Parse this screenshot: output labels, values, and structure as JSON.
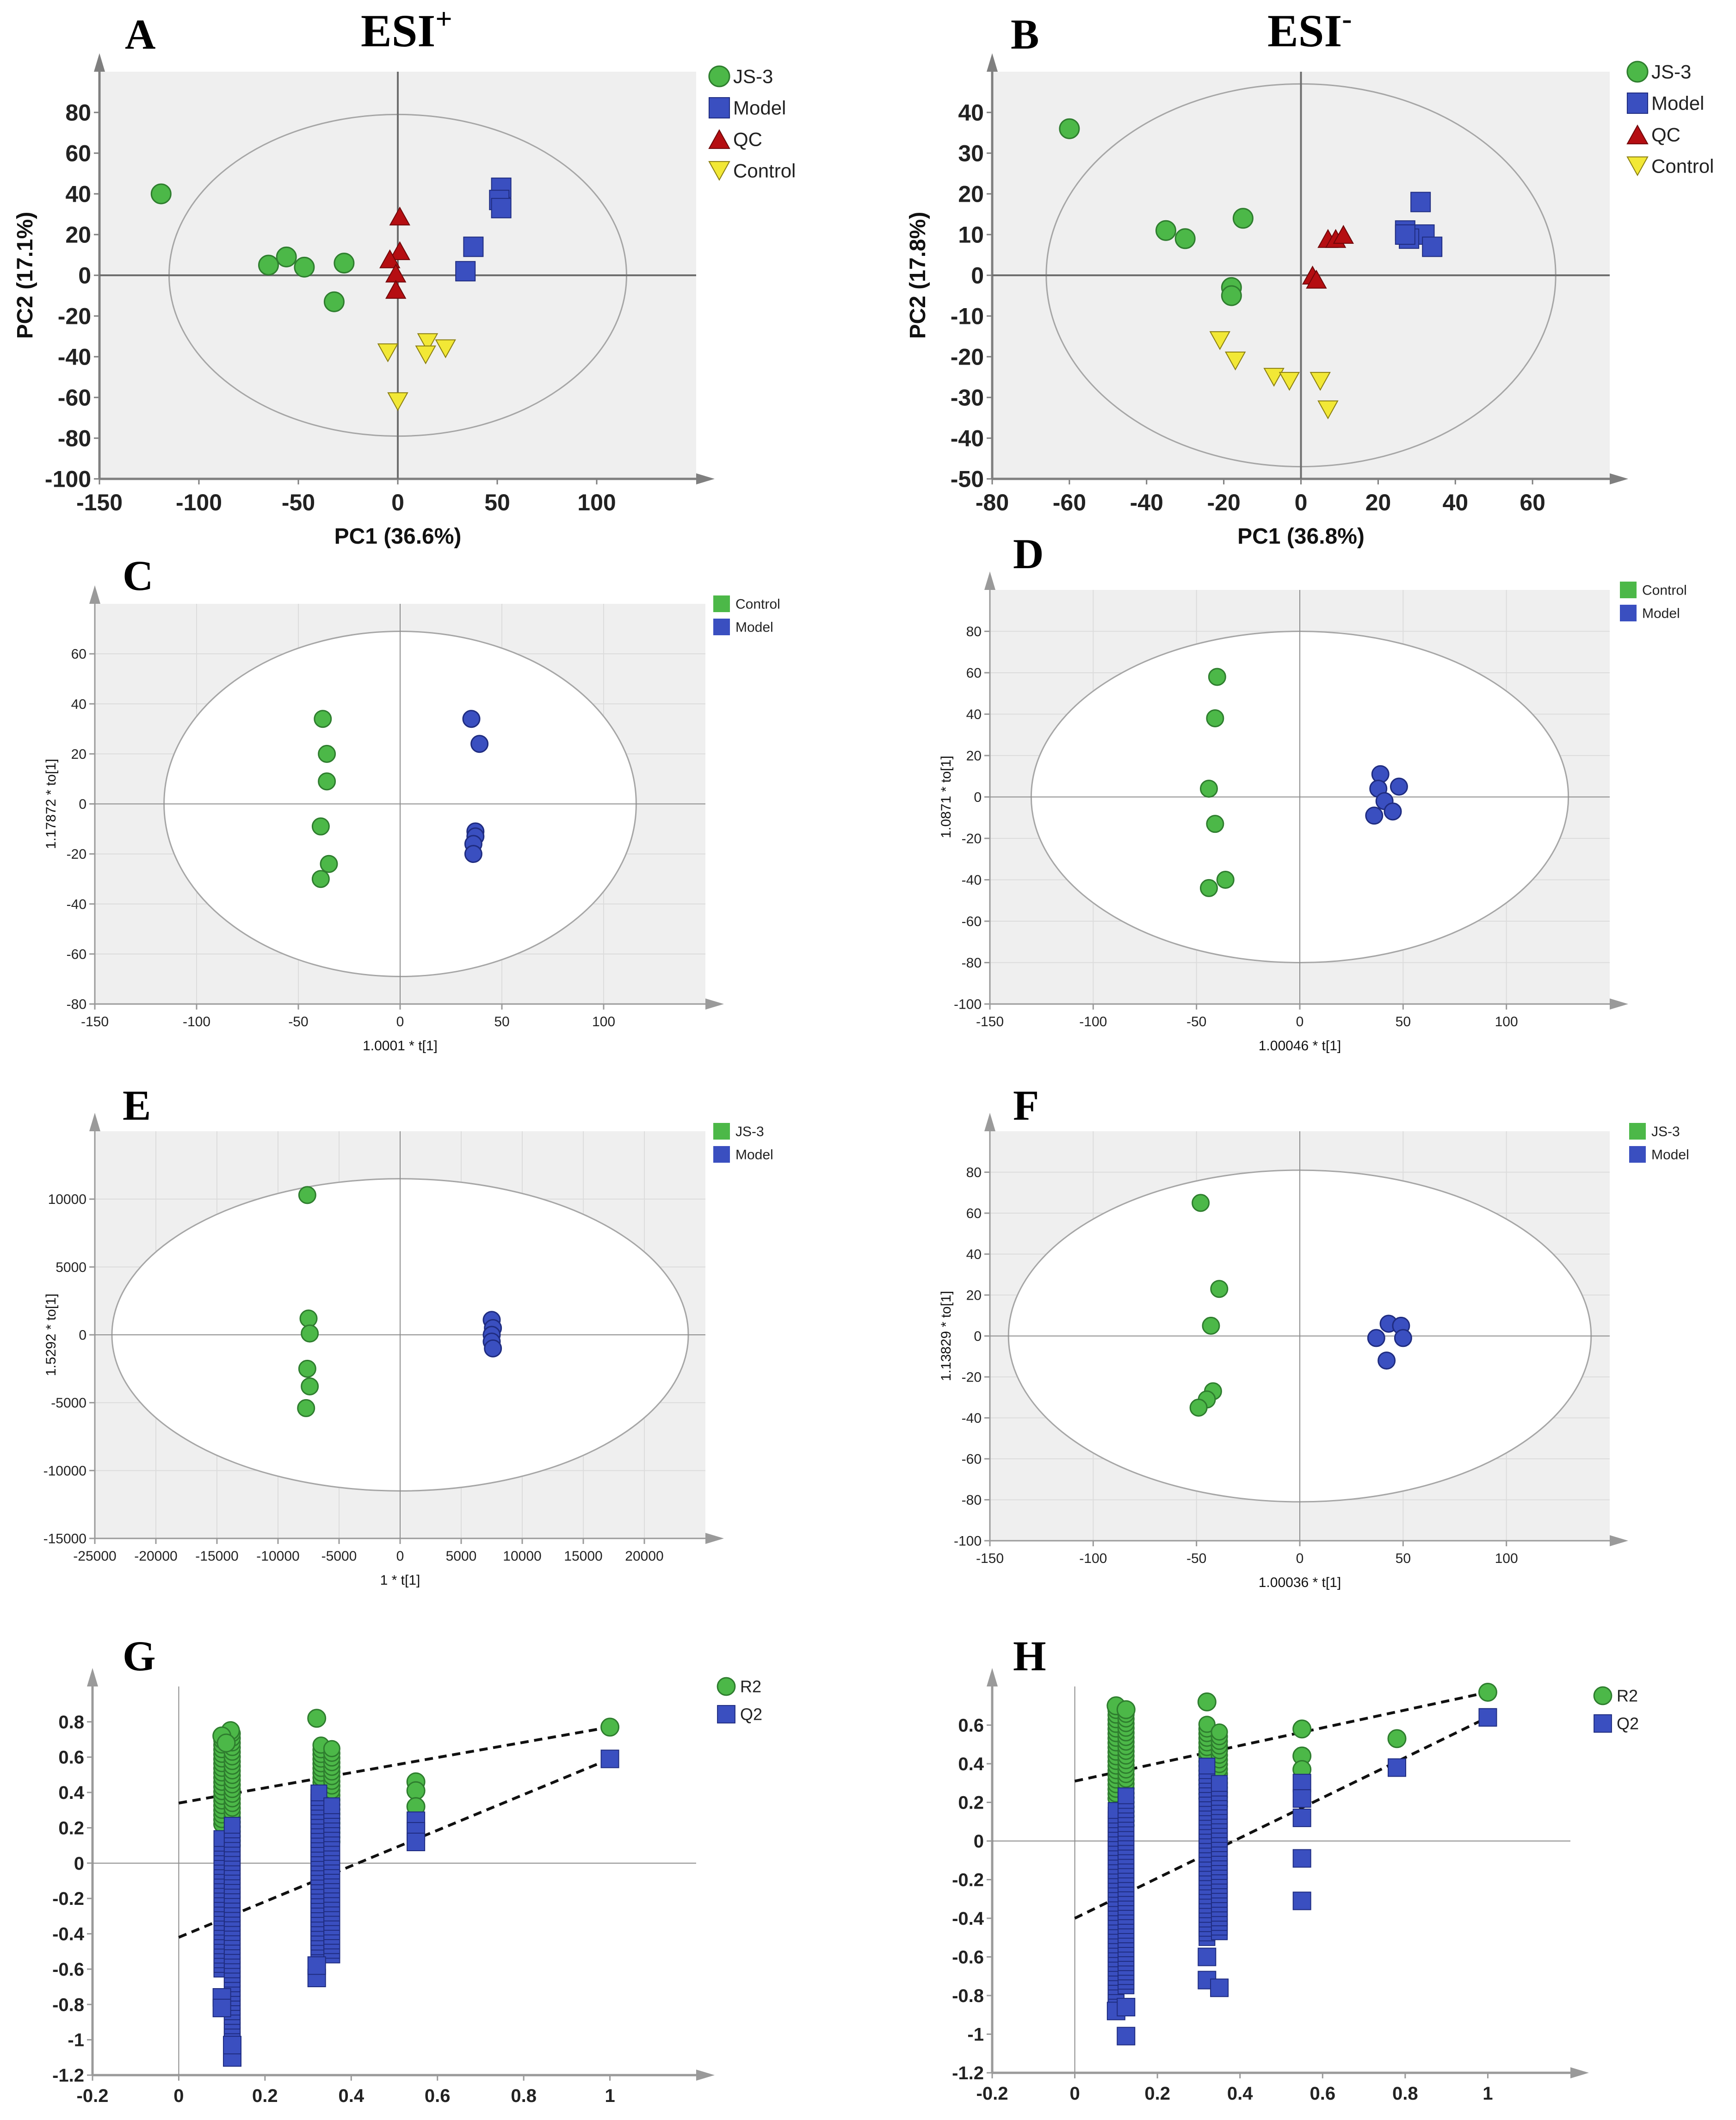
{
  "colors": {
    "js3": "#4CB848",
    "model": "#3A4FC0",
    "qc": "#B50E12",
    "control": "#F2E836",
    "plot_bg": "#EFEFEF",
    "grid": "#DCDCDC",
    "axis": "#9A9A9A",
    "ellipse": "#A6A6A6"
  },
  "figure": {
    "esi_pos_label": "ESI",
    "esi_pos_sup": "+",
    "esi_neg_label": "ESI",
    "esi_neg_sup": "-"
  },
  "chart_data": [
    {
      "id": "A",
      "type": "scatter",
      "panel_label": "A",
      "xlabel": "PC1 (36.6%)",
      "ylabel": "PC2 (17.1%)",
      "xlim": [
        -150,
        150
      ],
      "ylim": [
        -100,
        100
      ],
      "xticks": [
        -150,
        -100,
        -50,
        0,
        50,
        100
      ],
      "yticks": [
        -100,
        -80,
        -60,
        -40,
        -20,
        0,
        20,
        40,
        60,
        80
      ],
      "ellipse": {
        "rx": 115,
        "ry": 79
      },
      "series": [
        {
          "name": "JS-3",
          "marker": "circle",
          "color": "#4CB848",
          "points": [
            [
              -119,
              40
            ],
            [
              -65,
              5
            ],
            [
              -56,
              9
            ],
            [
              -47,
              4
            ],
            [
              -27,
              6
            ],
            [
              -32,
              -13
            ]
          ]
        },
        {
          "name": "Model",
          "marker": "square",
          "color": "#3A4FC0",
          "points": [
            [
              52,
              43
            ],
            [
              51,
              37
            ],
            [
              52,
              33
            ],
            [
              38,
              14
            ],
            [
              34,
              2
            ]
          ]
        },
        {
          "name": "QC",
          "marker": "triangle-up",
          "color": "#B50E12",
          "points": [
            [
              1,
              29
            ],
            [
              1,
              12
            ],
            [
              -4,
              8
            ],
            [
              -1,
              1
            ],
            [
              -1,
              -7
            ]
          ]
        },
        {
          "name": "Control",
          "marker": "triangle-down",
          "color": "#F2E836",
          "points": [
            [
              -5,
              -38
            ],
            [
              15,
              -33
            ],
            [
              14,
              -39
            ],
            [
              24,
              -36
            ],
            [
              0,
              -62
            ]
          ]
        }
      ]
    },
    {
      "id": "B",
      "type": "scatter",
      "panel_label": "B",
      "xlabel": "PC1 (36.8%)",
      "ylabel": "PC2 (17.8%)",
      "xlim": [
        -80,
        80
      ],
      "ylim": [
        -50,
        50
      ],
      "xticks": [
        -80,
        -60,
        -40,
        -20,
        0,
        20,
        40,
        60
      ],
      "yticks": [
        -50,
        -40,
        -30,
        -20,
        -10,
        0,
        10,
        20,
        30,
        40
      ],
      "ellipse": {
        "rx": 66,
        "ry": 47
      },
      "series": [
        {
          "name": "JS-3",
          "marker": "circle",
          "color": "#4CB848",
          "points": [
            [
              -60,
              36
            ],
            [
              -35,
              11
            ],
            [
              -30,
              9
            ],
            [
              -15,
              14
            ],
            [
              -18,
              -3
            ],
            [
              -18,
              -5
            ]
          ]
        },
        {
          "name": "Model",
          "marker": "square",
          "color": "#3A4FC0",
          "points": [
            [
              31,
              18
            ],
            [
              27,
              11
            ],
            [
              32,
              10
            ],
            [
              28,
              9
            ],
            [
              34,
              7
            ],
            [
              27,
              10
            ]
          ]
        },
        {
          "name": "QC",
          "marker": "triangle-up",
          "color": "#B50E12",
          "points": [
            [
              7,
              9
            ],
            [
              9,
              9
            ],
            [
              11,
              10
            ],
            [
              3,
              0
            ],
            [
              4,
              -1
            ]
          ]
        },
        {
          "name": "Control",
          "marker": "triangle-down",
          "color": "#F2E836",
          "points": [
            [
              -21,
              -16
            ],
            [
              -17,
              -21
            ],
            [
              -7,
              -25
            ],
            [
              -3,
              -26
            ],
            [
              5,
              -26
            ],
            [
              7,
              -33
            ]
          ]
        }
      ]
    },
    {
      "id": "C",
      "type": "scatter",
      "panel_label": "C",
      "xlabel": "1.0001 * t[1]",
      "ylabel": "1.17872 * to[1]",
      "xlim": [
        -150,
        150
      ],
      "ylim": [
        -80,
        80
      ],
      "xticks": [
        -150,
        -100,
        -50,
        0,
        50,
        100
      ],
      "yticks": [
        -80,
        -60,
        -40,
        -20,
        0,
        20,
        40,
        60
      ],
      "ellipse": {
        "rx": 116,
        "ry": 69
      },
      "series": [
        {
          "name": "Control",
          "marker": "circle",
          "color": "#4CB848",
          "points": [
            [
              -38,
              34
            ],
            [
              -36,
              20
            ],
            [
              -36,
              9
            ],
            [
              -39,
              -9
            ],
            [
              -35,
              -24
            ],
            [
              -39,
              -30
            ]
          ]
        },
        {
          "name": "Model",
          "marker": "circle",
          "color": "#3A4FC0",
          "points": [
            [
              35,
              34
            ],
            [
              39,
              24
            ],
            [
              37,
              -11
            ],
            [
              37,
              -13
            ],
            [
              36,
              -16
            ],
            [
              36,
              -20
            ]
          ]
        }
      ]
    },
    {
      "id": "D",
      "type": "scatter",
      "panel_label": "D",
      "xlabel": "1.00046 * t[1]",
      "ylabel": "1.0871 * to[1]",
      "xlim": [
        -150,
        150
      ],
      "ylim": [
        -100,
        100
      ],
      "xticks": [
        -150,
        -100,
        -50,
        0,
        50,
        100
      ],
      "yticks": [
        -100,
        -80,
        -60,
        -40,
        -20,
        0,
        20,
        40,
        60,
        80
      ],
      "ellipse": {
        "rx": 130,
        "ry": 80
      },
      "series": [
        {
          "name": "Control",
          "marker": "circle",
          "color": "#4CB848",
          "points": [
            [
              -40,
              58
            ],
            [
              -41,
              38
            ],
            [
              -44,
              4
            ],
            [
              -41,
              -13
            ],
            [
              -36,
              -40
            ],
            [
              -44,
              -44
            ]
          ]
        },
        {
          "name": "Model",
          "marker": "circle",
          "color": "#3A4FC0",
          "points": [
            [
              39,
              11
            ],
            [
              38,
              4
            ],
            [
              41,
              -2
            ],
            [
              48,
              5
            ],
            [
              45,
              -7
            ],
            [
              36,
              -9
            ]
          ]
        }
      ]
    },
    {
      "id": "E",
      "type": "scatter",
      "panel_label": "E",
      "xlabel": "1 * t[1]",
      "ylabel": "1.5292 * to[1]",
      "xlim": [
        -25000,
        25000
      ],
      "ylim": [
        -15000,
        15000
      ],
      "xticks": [
        -25000,
        -20000,
        -15000,
        -10000,
        -5000,
        0,
        5000,
        10000,
        15000,
        20000
      ],
      "yticks": [
        -15000,
        -10000,
        -5000,
        0,
        5000,
        10000
      ],
      "ellipse": {
        "rx": 23600,
        "ry": 11500
      },
      "series": [
        {
          "name": "JS-3",
          "marker": "circle",
          "color": "#4CB848",
          "points": [
            [
              -7600,
              10300
            ],
            [
              -7500,
              1200
            ],
            [
              -7400,
              100
            ],
            [
              -7600,
              -2500
            ],
            [
              -7400,
              -3800
            ],
            [
              -7700,
              -5400
            ]
          ]
        },
        {
          "name": "Model",
          "marker": "circle",
          "color": "#3A4FC0",
          "points": [
            [
              7500,
              1100
            ],
            [
              7600,
              500
            ],
            [
              7500,
              0
            ],
            [
              7500,
              -500
            ],
            [
              7600,
              -1000
            ]
          ]
        }
      ]
    },
    {
      "id": "F",
      "type": "scatter",
      "panel_label": "F",
      "xlabel": "1.00036 * t[1]",
      "ylabel": "1.13829 * to[1]",
      "xlim": [
        -150,
        150
      ],
      "ylim": [
        -100,
        100
      ],
      "xticks": [
        -150,
        -100,
        -50,
        0,
        50,
        100
      ],
      "yticks": [
        -100,
        -80,
        -60,
        -40,
        -20,
        0,
        20,
        40,
        60,
        80
      ],
      "ellipse": {
        "rx": 141,
        "ry": 81
      },
      "series": [
        {
          "name": "JS-3",
          "marker": "circle",
          "color": "#4CB848",
          "points": [
            [
              -48,
              65
            ],
            [
              -39,
              23
            ],
            [
              -43,
              5
            ],
            [
              -42,
              -27
            ],
            [
              -45,
              -31
            ],
            [
              -49,
              -35
            ]
          ]
        },
        {
          "name": "Model",
          "marker": "circle",
          "color": "#3A4FC0",
          "points": [
            [
              43,
              6
            ],
            [
              49,
              5
            ],
            [
              37,
              -1
            ],
            [
              50,
              -1
            ],
            [
              42,
              -12
            ]
          ]
        }
      ]
    },
    {
      "id": "G",
      "type": "scatter",
      "panel_label": "G",
      "xlabel": "",
      "ylabel": "",
      "xlim": [
        -0.2,
        1.2
      ],
      "ylim": [
        -1.2,
        1.0
      ],
      "xticks": [
        -0.2,
        0,
        0.2,
        0.4,
        0.6,
        0.8,
        1
      ],
      "yticks": [
        -1.2,
        -1,
        -0.8,
        -0.6,
        -0.4,
        -0.2,
        0,
        0.2,
        0.4,
        0.6,
        0.8
      ],
      "regression": [
        {
          "name": "R2",
          "x": [
            0,
            1
          ],
          "y": [
            0.34,
            0.77
          ]
        },
        {
          "name": "Q2",
          "x": [
            0,
            1
          ],
          "y": [
            -0.42,
            0.59
          ]
        }
      ],
      "series": [
        {
          "name": "R2",
          "marker": "circle",
          "color": "#4CB848",
          "points": [
            [
              1,
              0.77
            ],
            [
              0.32,
              0.82
            ],
            [
              0.55,
              0.46
            ],
            [
              0.55,
              0.41
            ],
            [
              0.55,
              0.32
            ],
            [
              0.12,
              0.75
            ],
            [
              0.1,
              0.72
            ],
            [
              0.11,
              0.68
            ]
          ],
          "columns": [
            {
              "x": 0.1,
              "min": 0.22,
              "max": 0.72
            },
            {
              "x": 0.124,
              "min": 0.1,
              "max": 0.75
            },
            {
              "x": 0.33,
              "min": 0.14,
              "max": 0.67
            },
            {
              "x": 0.355,
              "min": 0.12,
              "max": 0.67
            }
          ]
        },
        {
          "name": "Q2",
          "marker": "square",
          "color": "#3A4FC0",
          "points": [
            [
              1,
              0.59
            ],
            [
              0.55,
              0.24
            ],
            [
              0.55,
              0.18
            ],
            [
              0.55,
              0.12
            ],
            [
              0.1,
              -0.76
            ],
            [
              0.1,
              -0.82
            ],
            [
              0.124,
              -1.1
            ],
            [
              0.124,
              -1.03
            ],
            [
              0.32,
              -0.65
            ],
            [
              0.32,
              -0.58
            ]
          ],
          "columns": [
            {
              "x": 0.1,
              "min": -0.6,
              "max": 0.15
            },
            {
              "x": 0.124,
              "min": -1.0,
              "max": 0.23
            },
            {
              "x": 0.325,
              "min": -0.5,
              "max": 0.4
            },
            {
              "x": 0.355,
              "min": -0.52,
              "max": 0.34
            }
          ]
        }
      ]
    },
    {
      "id": "H",
      "type": "scatter",
      "panel_label": "H",
      "xlabel": "",
      "ylabel": "",
      "xlim": [
        -0.2,
        1.2
      ],
      "ylim": [
        -1.2,
        0.8
      ],
      "xticks": [
        -0.2,
        0,
        0.2,
        0.4,
        0.6,
        0.8,
        1
      ],
      "yticks": [
        -1.2,
        -1,
        -0.8,
        -0.6,
        -0.4,
        -0.2,
        0,
        0.2,
        0.4,
        0.6
      ],
      "regression": [
        {
          "name": "R2",
          "x": [
            0,
            1
          ],
          "y": [
            0.31,
            0.77
          ]
        },
        {
          "name": "Q2",
          "x": [
            0,
            1
          ],
          "y": [
            -0.4,
            0.64
          ]
        }
      ],
      "series": [
        {
          "name": "R2",
          "marker": "circle",
          "color": "#4CB848",
          "points": [
            [
              1,
              0.77
            ],
            [
              0.78,
              0.53
            ],
            [
              0.32,
              0.72
            ],
            [
              0.55,
              0.58
            ],
            [
              0.55,
              0.44
            ],
            [
              0.55,
              0.37
            ],
            [
              0.1,
              0.7
            ],
            [
              0.124,
              0.68
            ]
          ],
          "columns": [
            {
              "x": 0.1,
              "min": 0.22,
              "max": 0.7
            },
            {
              "x": 0.124,
              "min": 0.08,
              "max": 0.68
            },
            {
              "x": 0.32,
              "min": 0.22,
              "max": 0.62
            },
            {
              "x": 0.35,
              "min": 0.18,
              "max": 0.58
            }
          ]
        },
        {
          "name": "Q2",
          "marker": "square",
          "color": "#3A4FC0",
          "points": [
            [
              1,
              0.64
            ],
            [
              0.78,
              0.38
            ],
            [
              0.55,
              0.3
            ],
            [
              0.55,
              0.22
            ],
            [
              0.55,
              0.12
            ],
            [
              0.55,
              -0.09
            ],
            [
              0.55,
              -0.31
            ],
            [
              0.124,
              -1.01
            ],
            [
              0.1,
              -0.88
            ],
            [
              0.124,
              -0.86
            ],
            [
              0.32,
              -0.6
            ],
            [
              0.32,
              -0.72
            ],
            [
              0.35,
              -0.76
            ]
          ],
          "columns": [
            {
              "x": 0.1,
              "min": -0.85,
              "max": 0.18
            },
            {
              "x": 0.124,
              "min": -0.75,
              "max": 0.24
            },
            {
              "x": 0.32,
              "min": -0.5,
              "max": 0.4
            },
            {
              "x": 0.35,
              "min": -0.47,
              "max": 0.3
            }
          ]
        }
      ]
    }
  ]
}
